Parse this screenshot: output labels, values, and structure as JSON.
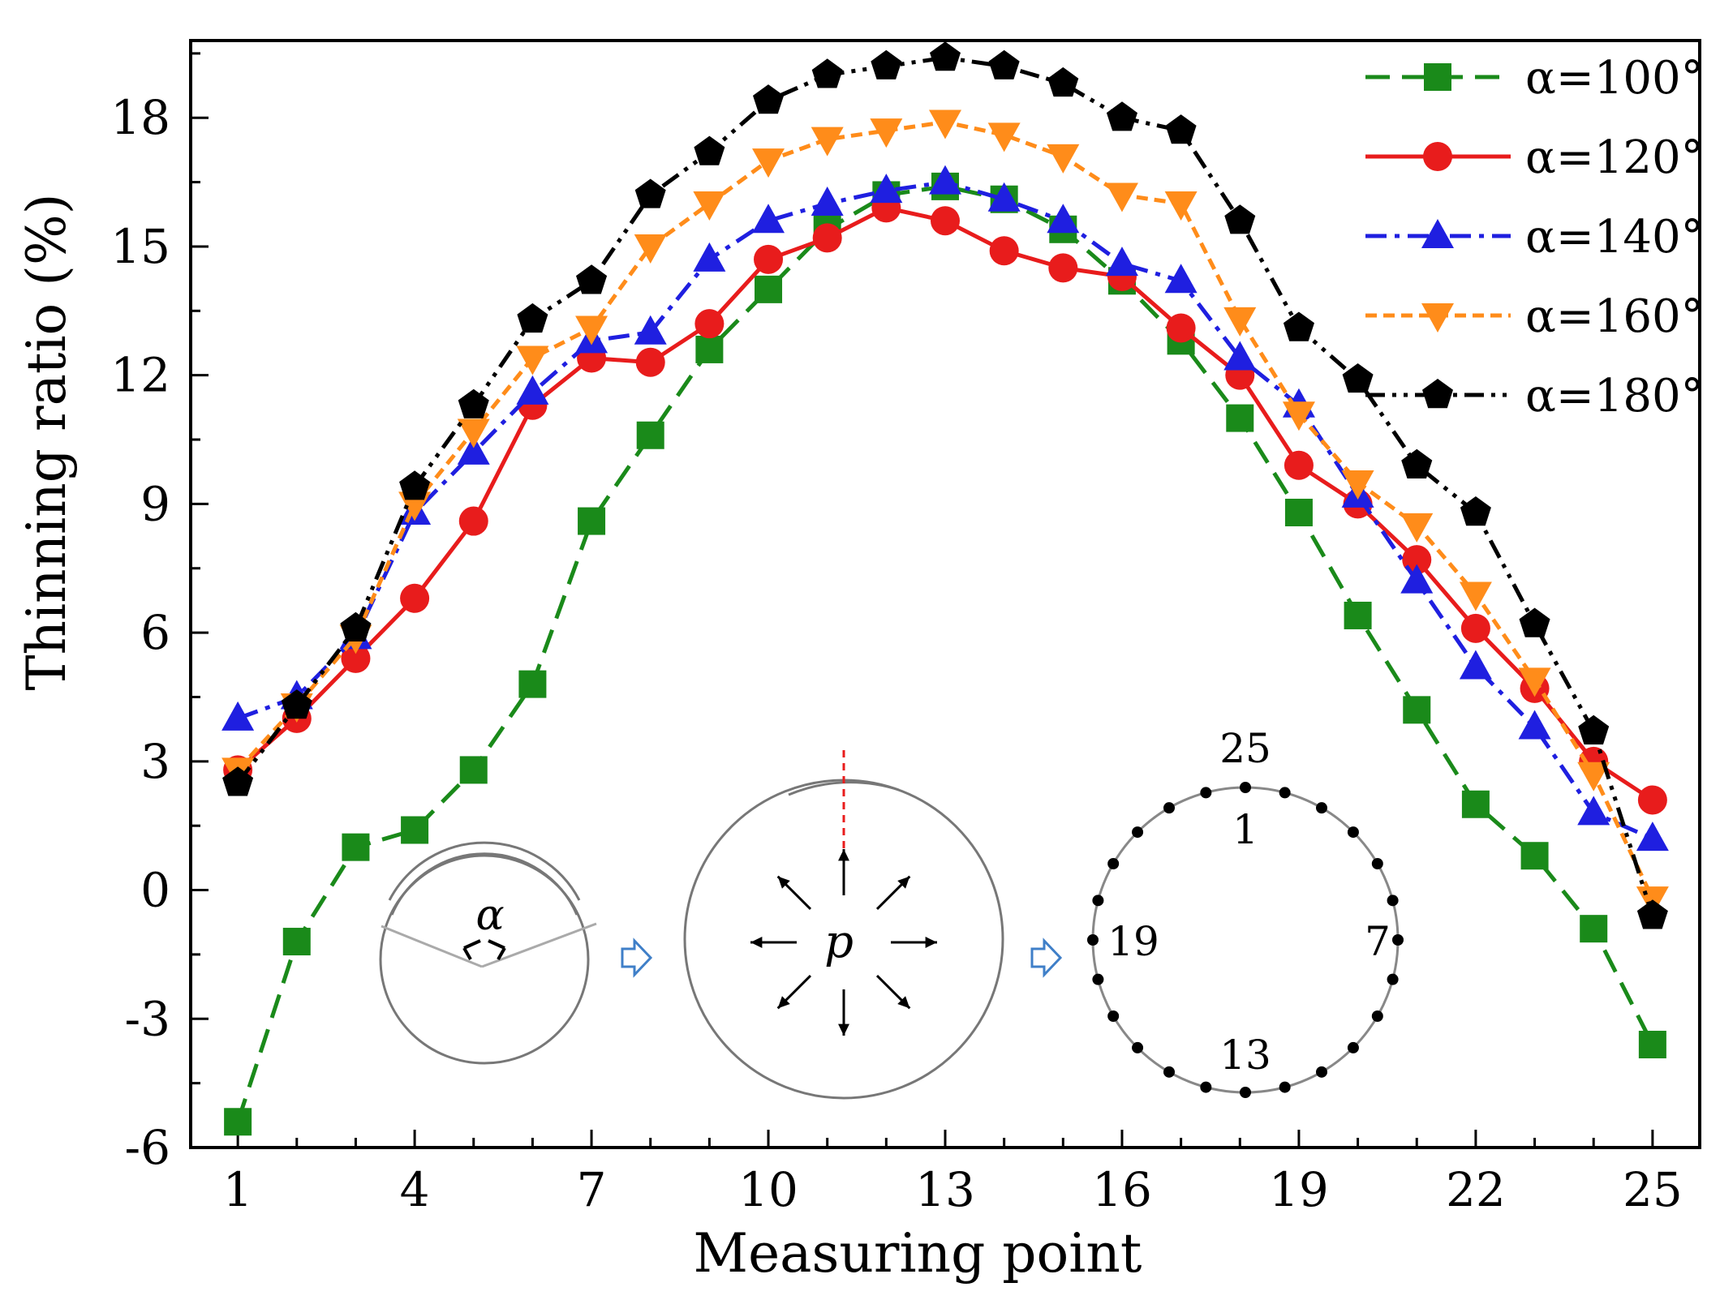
{
  "chart_data": {
    "type": "line",
    "xlabel": "Measuring point",
    "ylabel": "Thinning ratio (%)",
    "xlim": [
      0.2,
      25.8
    ],
    "ylim": [
      -6,
      19.8
    ],
    "x_ticks": [
      1,
      4,
      7,
      10,
      13,
      16,
      19,
      22,
      25
    ],
    "y_ticks": [
      -6,
      -3,
      0,
      3,
      6,
      9,
      12,
      15,
      18
    ],
    "x": [
      1,
      2,
      3,
      4,
      5,
      6,
      7,
      8,
      9,
      10,
      11,
      12,
      13,
      14,
      15,
      16,
      17,
      18,
      19,
      20,
      21,
      22,
      23,
      24,
      25
    ],
    "legend_position": "top-right",
    "series": [
      {
        "name": "α=100°",
        "color": "#1a8a1a",
        "dash": "dash",
        "marker": "square",
        "values": [
          -5.4,
          -1.2,
          1.0,
          1.4,
          2.8,
          4.8,
          8.6,
          10.6,
          12.6,
          14.0,
          15.4,
          16.2,
          16.4,
          16.1,
          15.4,
          14.2,
          12.8,
          11.0,
          8.8,
          6.4,
          4.2,
          2.0,
          0.8,
          -0.9,
          -3.6
        ]
      },
      {
        "name": "α=120°",
        "color": "#e81c1c",
        "dash": "solid",
        "marker": "circle",
        "values": [
          2.8,
          4.0,
          5.4,
          6.8,
          8.6,
          11.3,
          12.4,
          12.3,
          13.2,
          14.7,
          15.2,
          15.9,
          15.6,
          14.9,
          14.5,
          14.3,
          13.1,
          12.0,
          9.9,
          9.0,
          7.7,
          6.1,
          4.7,
          3.0,
          2.1
        ]
      },
      {
        "name": "α=140°",
        "color": "#1f1fe0",
        "dash": "dashdot",
        "marker": "triangle-up",
        "values": [
          4.0,
          4.5,
          5.9,
          8.8,
          10.2,
          11.6,
          12.8,
          13.0,
          14.7,
          15.6,
          16.0,
          16.3,
          16.5,
          16.1,
          15.6,
          14.6,
          14.2,
          12.4,
          11.3,
          9.2,
          7.2,
          5.2,
          3.8,
          1.8,
          1.2
        ]
      },
      {
        "name": "α=160°",
        "color": "#ff8c1a",
        "dash": "shortdash",
        "marker": "triangle-down",
        "values": [
          2.8,
          4.3,
          5.9,
          9.0,
          10.7,
          12.4,
          13.1,
          15.0,
          16.0,
          17.0,
          17.5,
          17.7,
          17.9,
          17.6,
          17.1,
          16.2,
          16.0,
          13.3,
          11.1,
          9.5,
          8.5,
          6.9,
          4.9,
          2.7,
          -0.2
        ]
      },
      {
        "name": "α=180°",
        "color": "#000000",
        "dash": "dashdotdot",
        "marker": "pentagon",
        "values": [
          2.5,
          4.3,
          6.1,
          9.4,
          11.3,
          13.3,
          14.2,
          16.2,
          17.2,
          18.4,
          19.0,
          19.2,
          19.4,
          19.2,
          18.8,
          18.0,
          17.7,
          15.6,
          13.1,
          11.9,
          9.9,
          8.8,
          6.2,
          3.7,
          -0.6
        ]
      }
    ],
    "insets": {
      "angle_label": "α",
      "pressure_label": "p",
      "ring_labels": [
        "25",
        "1",
        "19",
        "7",
        "13"
      ]
    }
  }
}
